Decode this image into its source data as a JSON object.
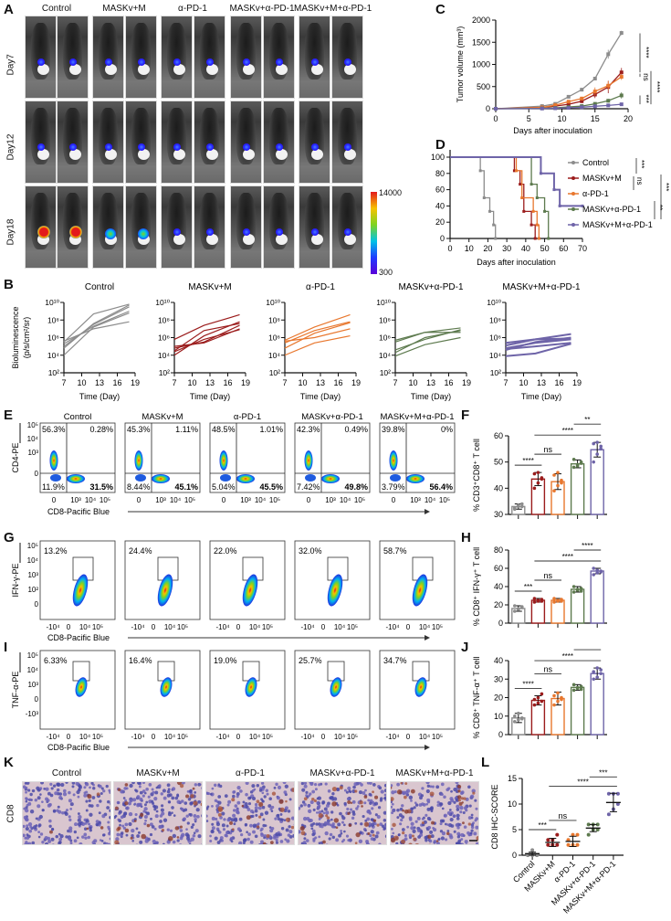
{
  "figure": {
    "groups": [
      "Control",
      "MASKv+M",
      "α-PD-1",
      "MASKv+α-PD-1",
      "MASKv+M+α-PD-1"
    ],
    "group_colors": {
      "Control": "#8c8c8c",
      "MASKv+M": "#9b1c1c",
      "α-PD-1": "#e8772e",
      "MASKv+α-PD-1": "#5d7a4e",
      "MASKv+M+α-PD-1": "#6e64a8"
    }
  },
  "panelA": {
    "letter": "A",
    "group_labels": [
      "Control",
      "MASKv+M",
      "α-PD-1",
      "MASKv+α-PD-1",
      "MASKv+M+α-PD-1"
    ],
    "rows": [
      "Day7",
      "Day12",
      "Day18"
    ],
    "colorbar": {
      "max_label": "14000",
      "min_label": "300"
    }
  },
  "chart_data": [
    {
      "id": "C",
      "type": "line",
      "title": "",
      "xlabel": "Days after inoculation",
      "ylabel": "Tumor volume (mm³)",
      "xlim": [
        0,
        20
      ],
      "ylim": [
        0,
        2000
      ],
      "xticks": [
        "0",
        "5",
        "10",
        "15",
        "20"
      ],
      "yticks": [
        "0",
        "500",
        "1000",
        "1500",
        "2000"
      ],
      "x": [
        0,
        7,
        9,
        11,
        13,
        15,
        17,
        19
      ],
      "series": [
        {
          "name": "Control",
          "values": [
            0,
            60,
            110,
            270,
            430,
            680,
            1230,
            1710
          ],
          "errors": [
            0,
            10,
            15,
            20,
            40,
            20,
            100,
            50
          ]
        },
        {
          "name": "MASKv+M",
          "values": [
            0,
            30,
            60,
            100,
            170,
            320,
            490,
            820
          ],
          "errors": [
            0,
            5,
            10,
            20,
            40,
            80,
            140,
            100
          ]
        },
        {
          "name": "α-PD-1",
          "values": [
            0,
            30,
            80,
            160,
            230,
            390,
            520,
            720
          ],
          "errors": [
            0,
            5,
            15,
            30,
            40,
            90,
            100,
            70
          ]
        },
        {
          "name": "MASKv+α-PD-1",
          "values": [
            0,
            10,
            20,
            40,
            60,
            110,
            180,
            300
          ],
          "errors": [
            0,
            3,
            5,
            10,
            15,
            20,
            40,
            70
          ]
        },
        {
          "name": "MASKv+M+α-PD-1",
          "values": [
            0,
            5,
            10,
            20,
            35,
            55,
            75,
            100
          ],
          "errors": [
            0,
            2,
            3,
            5,
            8,
            10,
            12,
            15
          ]
        }
      ],
      "annotations": [
        "****",
        "ns",
        "****",
        "***"
      ]
    },
    {
      "id": "D",
      "type": "line",
      "title": "",
      "xlabel": "Days after inoculation",
      "ylabel": "Percent survival (%)",
      "xlim": [
        0,
        70
      ],
      "ylim": [
        0,
        100
      ],
      "xticks": [
        "0",
        "10",
        "20",
        "30",
        "40",
        "50",
        "60",
        "70"
      ],
      "yticks": [
        "0",
        "20",
        "40",
        "60",
        "80",
        "100"
      ],
      "legend_position": "right",
      "series": [
        {
          "name": "Control",
          "x": [
            0,
            16,
            18,
            21,
            23,
            24
          ],
          "values": [
            100,
            83.3,
            50,
            33.3,
            16.7,
            0
          ]
        },
        {
          "name": "MASKv+M",
          "x": [
            0,
            34,
            37,
            39,
            43,
            45
          ],
          "values": [
            100,
            83.3,
            66.7,
            33.3,
            16.7,
            0
          ]
        },
        {
          "name": "α-PD-1",
          "x": [
            0,
            35,
            38,
            44,
            46,
            47
          ],
          "values": [
            100,
            83.3,
            50,
            33.3,
            16.7,
            0
          ]
        },
        {
          "name": "MASKv+α-PD-1",
          "x": [
            0,
            43,
            46,
            50,
            52
          ],
          "values": [
            100,
            66.7,
            50,
            33.3,
            0
          ]
        },
        {
          "name": "MASKv+M+α-PD-1",
          "x": [
            0,
            48,
            55,
            58,
            70
          ],
          "values": [
            100,
            80,
            60,
            40,
            40
          ]
        }
      ],
      "annotations": [
        "***",
        "ns",
        "**",
        "***"
      ]
    },
    {
      "id": "B",
      "type": "line",
      "ylabel": "Bioluminescence (p/s/cm²/sr)",
      "xlabel": "Time (Day)",
      "xticks": [
        "7",
        "10",
        "13",
        "16",
        "19"
      ],
      "yticks": [
        "10²",
        "10⁴",
        "10⁶",
        "10⁸",
        "10¹⁰"
      ],
      "xlim": [
        7,
        19
      ],
      "ylim_log10": [
        2,
        10
      ],
      "x": [
        7,
        12,
        18
      ],
      "panels": [
        {
          "title": "Control",
          "series_log10": [
            [
              5.5,
              8.7,
              9.8
            ],
            [
              5.0,
              7.5,
              9.5
            ],
            [
              4.0,
              7.2,
              8.8
            ],
            [
              5.3,
              7.3,
              9.0
            ],
            [
              5.6,
              7.0,
              7.8
            ],
            [
              4.8,
              7.6,
              9.7
            ]
          ]
        },
        {
          "title": "MASKv+M",
          "series_log10": [
            [
              5.8,
              7.4,
              8.6
            ],
            [
              4.5,
              6.8,
              7.6
            ],
            [
              4.0,
              6.2,
              7.8
            ],
            [
              4.8,
              5.5,
              7.4
            ],
            [
              5.0,
              5.4,
              7.0
            ],
            [
              4.4,
              5.8,
              6.9
            ]
          ]
        },
        {
          "title": "α-PD-1",
          "series_log10": [
            [
              5.7,
              7.2,
              8.6
            ],
            [
              5.4,
              6.8,
              7.8
            ],
            [
              4.8,
              6.5,
              7.7
            ],
            [
              4.0,
              5.4,
              6.2
            ],
            [
              5.6,
              6.0,
              7.0
            ]
          ]
        },
        {
          "title": "MASKv+α-PD-1",
          "series_log10": [
            [
              5.7,
              6.6,
              7.1
            ],
            [
              4.6,
              5.8,
              6.9
            ],
            [
              4.3,
              6.0,
              6.8
            ],
            [
              3.9,
              5.2,
              6.0
            ],
            [
              5.5,
              6.6,
              6.6
            ]
          ]
        },
        {
          "title": "MASKv+M+α-PD-1",
          "series_log10": [
            [
              5.4,
              5.8,
              6.4
            ],
            [
              4.8,
              5.4,
              5.8
            ],
            [
              4.6,
              5.5,
              6.0
            ],
            [
              3.9,
              4.2,
              5.3
            ],
            [
              5.1,
              5.8,
              5.9
            ],
            [
              4.7,
              5.0,
              5.4
            ]
          ]
        }
      ]
    },
    {
      "id": "F",
      "type": "bar",
      "ylabel": "% CD3⁺CD8⁺ T cell",
      "ylim": [
        30,
        60
      ],
      "yticks": [
        "30",
        "40",
        "50",
        "60"
      ],
      "categories": [
        "Control",
        "MASKv+M",
        "α-PD-1",
        "MASKv+α-PD-1",
        "MASKv+M+α-PD-1"
      ],
      "values": [
        33,
        43.5,
        42.5,
        49.3,
        54.7
      ],
      "errors": [
        1,
        2.5,
        3,
        1.5,
        2.8
      ],
      "points": [
        [
          32,
          33,
          34,
          32.5,
          33.5,
          33
        ],
        [
          40,
          42,
          44,
          45.5,
          46,
          43.5
        ],
        [
          39,
          41,
          43,
          45,
          46,
          42
        ],
        [
          48,
          49,
          50,
          51,
          48.5,
          49.5
        ],
        [
          50,
          53,
          55,
          57,
          57.5,
          56
        ]
      ],
      "comparisons": [
        {
          "from": 0,
          "to": 1,
          "label": "****"
        },
        {
          "from": 1,
          "to": 2,
          "label": "ns"
        },
        {
          "from": 1,
          "to": 4,
          "label": "****"
        },
        {
          "from": 3,
          "to": 4,
          "label": "**"
        }
      ]
    },
    {
      "id": "H",
      "type": "bar",
      "ylabel": "% CD8⁺ IFN-γ⁺ T cell",
      "ylim": [
        0,
        80
      ],
      "yticks": [
        "0",
        "20",
        "40",
        "60",
        "80"
      ],
      "categories": [
        "Control",
        "MASKv+M",
        "α-PD-1",
        "MASKv+α-PD-1",
        "MASKv+M+α-PD-1"
      ],
      "values": [
        16,
        25,
        25,
        37,
        57
      ],
      "errors": [
        3,
        2,
        2,
        3,
        3
      ],
      "points": [
        [
          13,
          15,
          17,
          19,
          16,
          18
        ],
        [
          23,
          24,
          26,
          27,
          25,
          24
        ],
        [
          23,
          24,
          26,
          27,
          25,
          24
        ],
        [
          34,
          36,
          38,
          40,
          37,
          35
        ],
        [
          53,
          55,
          57,
          60,
          58,
          56
        ]
      ],
      "comparisons": [
        {
          "from": 0,
          "to": 1,
          "label": "***"
        },
        {
          "from": 1,
          "to": 2,
          "label": "ns"
        },
        {
          "from": 1,
          "to": 4,
          "label": "****"
        },
        {
          "from": 3,
          "to": 4,
          "label": "****"
        }
      ]
    },
    {
      "id": "J",
      "type": "bar",
      "ylabel": "% CD8⁺ TNF-α⁺ T cell",
      "ylim": [
        0,
        40
      ],
      "yticks": [
        "0",
        "10",
        "20",
        "30",
        "40"
      ],
      "categories": [
        "Control",
        "MASKv+M",
        "α-PD-1",
        "MASKv+α-PD-1",
        "MASKv+M+α-PD-1"
      ],
      "values": [
        9,
        18.5,
        19.5,
        25.5,
        33
      ],
      "errors": [
        2.5,
        2.5,
        3.5,
        1.5,
        3
      ],
      "points": [
        [
          7,
          8,
          9,
          10,
          11.5,
          8.5
        ],
        [
          16,
          17,
          18,
          19,
          20,
          22
        ],
        [
          16,
          18,
          19,
          21,
          22.5,
          20
        ],
        [
          24,
          25,
          26,
          27,
          25.5,
          24.5
        ],
        [
          30,
          31,
          33,
          34,
          36,
          35
        ]
      ],
      "comparisons": [
        {
          "from": 0,
          "to": 1,
          "label": "****"
        },
        {
          "from": 1,
          "to": 2,
          "label": "ns"
        },
        {
          "from": 1,
          "to": 4,
          "label": "****"
        },
        {
          "from": 3,
          "to": 4,
          "label": "***"
        }
      ]
    },
    {
      "id": "L",
      "type": "scatter",
      "ylabel": "CD8 IHC-SCORE",
      "ylim": [
        0,
        15
      ],
      "yticks": [
        "0",
        "5",
        "10",
        "15"
      ],
      "categories": [
        "Control",
        "MASKv+M",
        "α-PD-1",
        "MASKv+α-PD-1",
        "MASKv+M+α-PD-1"
      ],
      "means": [
        0.3,
        2.5,
        2.7,
        5.3,
        10.3
      ],
      "errors": [
        0.3,
        0.8,
        1.0,
        0.7,
        1.8
      ],
      "points": [
        [
          0,
          0,
          0,
          0,
          1,
          0
        ],
        [
          2,
          2,
          2,
          3,
          3,
          4
        ],
        [
          2,
          2,
          2,
          3,
          4,
          4
        ],
        [
          4,
          5,
          5,
          6,
          6,
          6
        ],
        [
          8,
          9,
          10,
          12,
          12,
          12
        ]
      ],
      "comparisons": [
        {
          "from": 0,
          "to": 1,
          "label": "***"
        },
        {
          "from": 1,
          "to": 2,
          "label": "ns"
        },
        {
          "from": 1,
          "to": 4,
          "label": "****"
        },
        {
          "from": 3,
          "to": 4,
          "label": "***"
        }
      ]
    }
  ],
  "flow": {
    "E": {
      "letter": "E",
      "ylabel": "CD4-PE",
      "xlabel": "CD8-Pacific Blue",
      "yticks": [
        "10⁵",
        "10⁴",
        "10³",
        "0"
      ],
      "xticks": [
        "0",
        "10³",
        "10⁴",
        "10⁵"
      ],
      "plots": [
        {
          "title": "Control",
          "q_tl": "56.3%",
          "q_tr": "0.28%",
          "q_bl": "11.9%",
          "q_br": "31.5%"
        },
        {
          "title": "MASKv+M",
          "q_tl": "45.3%",
          "q_tr": "1.11%",
          "q_bl": "8.44%",
          "q_br": "45.1%"
        },
        {
          "title": "α-PD-1",
          "q_tl": "48.5%",
          "q_tr": "1.01%",
          "q_bl": "5.04%",
          "q_br": "45.5%"
        },
        {
          "title": "MASKv+α-PD-1",
          "q_tl": "42.3%",
          "q_tr": "0.49%",
          "q_bl": "7.42%",
          "q_br": "49.8%"
        },
        {
          "title": "MASKv+M+α-PD-1",
          "q_tl": "39.8%",
          "q_tr": "0%",
          "q_bl": "3.79%",
          "q_br": "56.4%"
        }
      ]
    },
    "G": {
      "letter": "G",
      "ylabel": "IFN-γ-PE",
      "xlabel": "CD8-Pacific Blue",
      "yticks": [
        "10⁵",
        "10⁴",
        "10³",
        "10²",
        "0"
      ],
      "xticks": [
        "-10⁴",
        "0",
        "10⁴",
        "10⁵"
      ],
      "gates": [
        "13.2%",
        "24.4%",
        "22.0%",
        "32.0%",
        "58.7%"
      ]
    },
    "I": {
      "letter": "I",
      "ylabel": "TNF-α-PE",
      "xlabel": "CD8-Pacific Blue",
      "yticks": [
        "10⁵",
        "10⁴",
        "10³",
        "0",
        "-10³"
      ],
      "xticks": [
        "-10⁴",
        "0",
        "10⁴",
        "10⁵"
      ],
      "gates": [
        "6.33%",
        "16.4%",
        "19.0%",
        "25.7%",
        "34.7%"
      ]
    }
  },
  "panelK": {
    "letter": "K",
    "row_label": "CD8",
    "group_labels": [
      "Control",
      "MASKv+M",
      "α-PD-1",
      "MASKv+α-PD-1",
      "MASKv+M+α-PD-1"
    ],
    "brown_density": [
      0.04,
      0.22,
      0.18,
      0.26,
      0.32
    ]
  },
  "letters": {
    "B": "B",
    "C": "C",
    "D": "D",
    "F": "F",
    "H": "H",
    "J": "J",
    "L": "L"
  }
}
